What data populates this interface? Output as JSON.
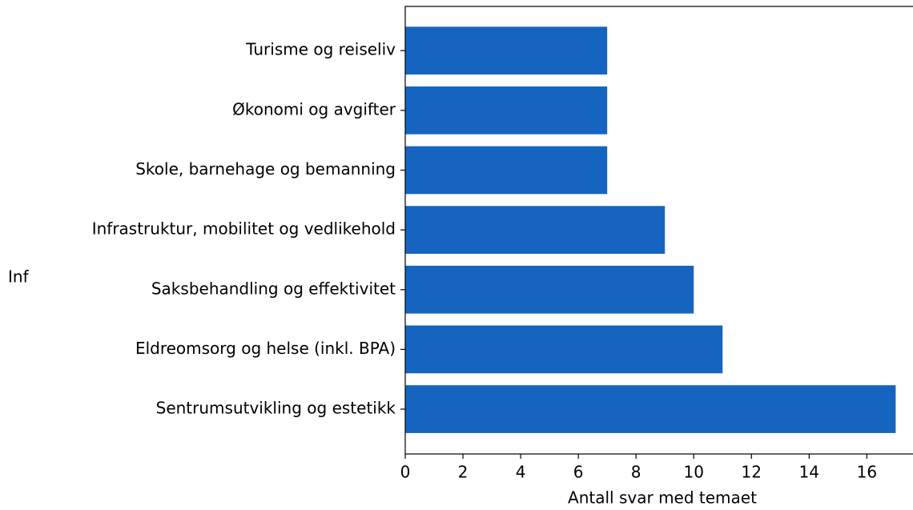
{
  "chart_data": {
    "type": "barh",
    "ylabel": "Inf",
    "xlabel": "Antall svar med temaet",
    "categories": [
      "Sentrumsutvikling og estetikk",
      "Eldreomsorg og helse (inkl. BPA)",
      "Saksbehandling og effektivitet",
      "Infrastruktur, mobilitet og vedlikehold",
      "Skole, barnehage og bemanning",
      "Økonomi og avgifter",
      "Turisme og reiseliv"
    ],
    "values": [
      17,
      11,
      10,
      9,
      7,
      7,
      7
    ],
    "color": "#1565c0",
    "xlim": [
      0,
      17.85
    ],
    "xticks": [
      0,
      2,
      4,
      6,
      8,
      10,
      12,
      14,
      16
    ]
  }
}
